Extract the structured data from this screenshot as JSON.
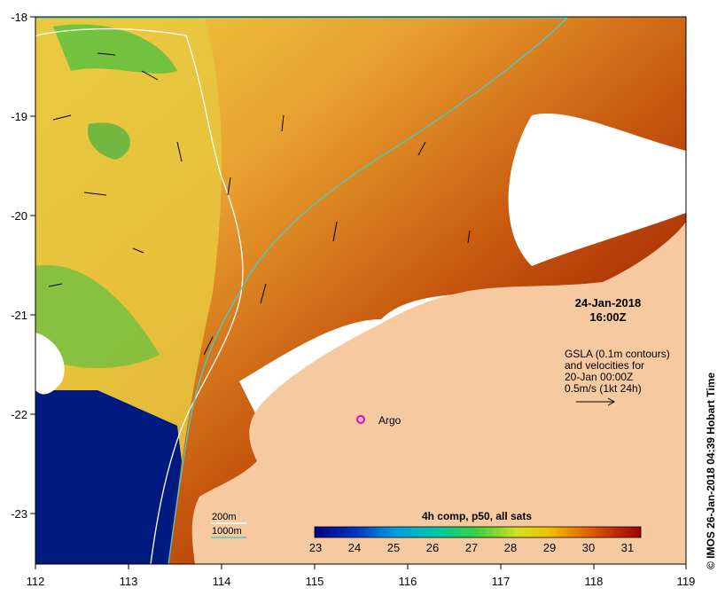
{
  "map": {
    "lon_ticks": [
      "112",
      "113",
      "114",
      "115",
      "116",
      "117",
      "118",
      "119"
    ],
    "lat_ticks": [
      "-18",
      "-19",
      "-20",
      "-21",
      "-22",
      "-23"
    ],
    "date_label": "24-Jan-2018",
    "time_label": "16:00Z",
    "gsla_note": [
      "GSLA (0.1m contours)",
      "and velocities for",
      "20-Jan 00:00Z",
      "0.5m/s (1kt 24h)"
    ],
    "argo_label": "Argo",
    "depth_legend": {
      "shallow": "200m",
      "deep": "1000m"
    },
    "colorbar": {
      "title": "4h comp, p50, all sats",
      "ticks": [
        "23",
        "24",
        "25",
        "26",
        "27",
        "28",
        "29",
        "30",
        "31"
      ]
    },
    "credit": "© IMOS 26-Jan-2018 04:39 Hobart Time"
  },
  "colors": {
    "land": "#F7C9A0",
    "cloud": "#FFFFFF",
    "deep_ocean": "#001a80",
    "isobath_200": "#ffffff",
    "isobath_1000": "#40d0c8",
    "argo_marker": "#e000e0"
  }
}
